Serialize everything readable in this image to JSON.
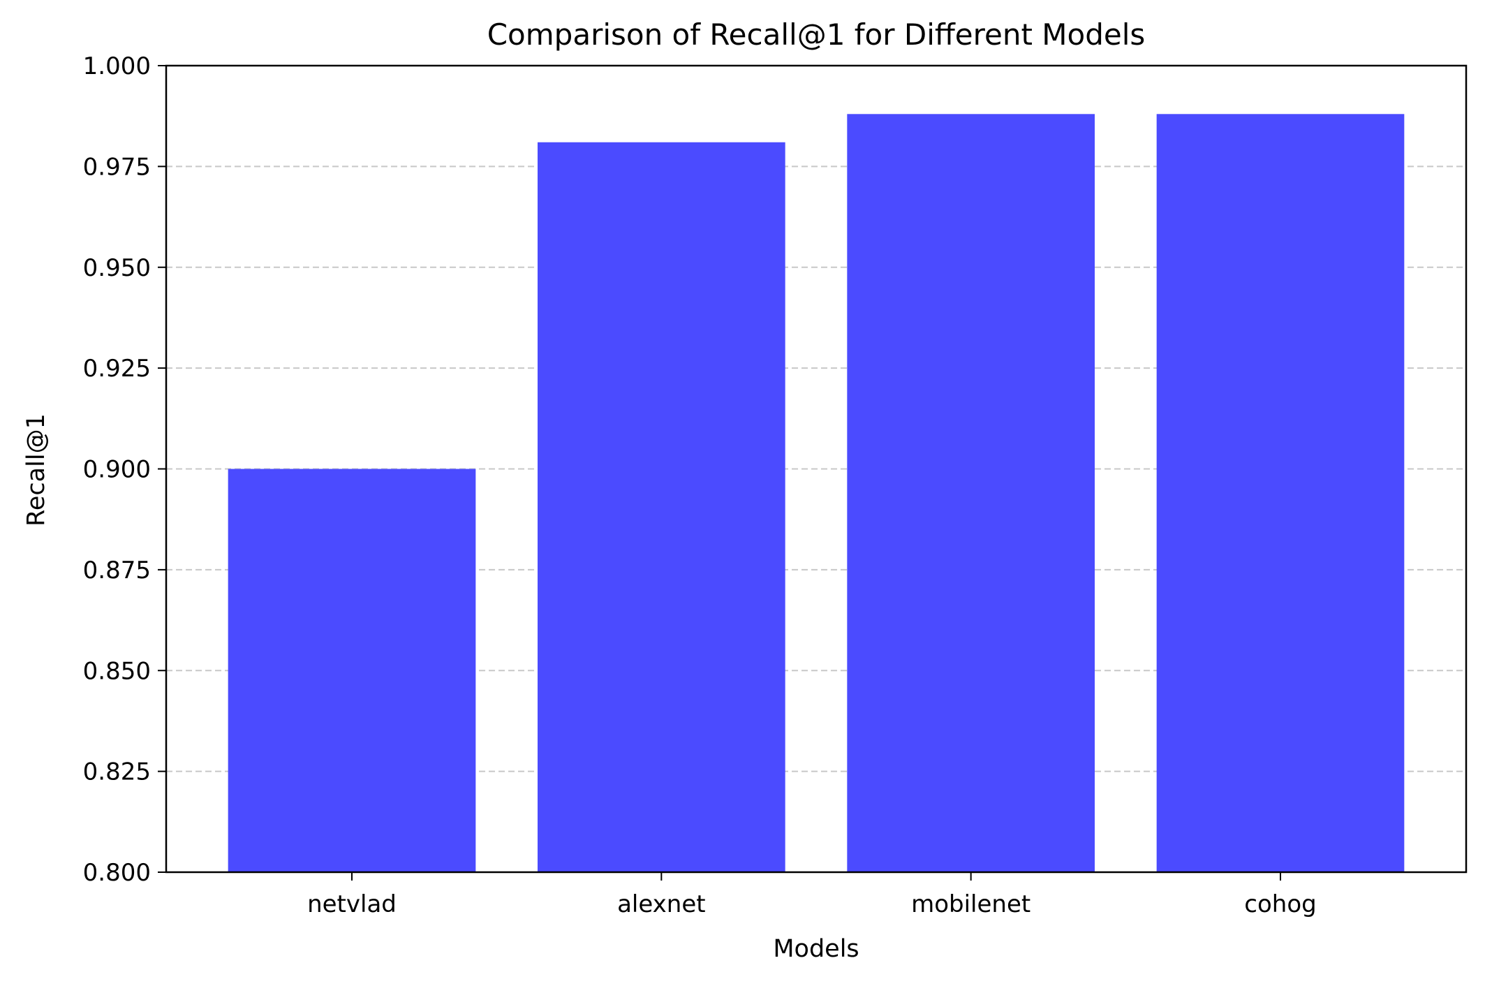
{
  "chart_data": {
    "type": "bar",
    "title": "Comparison of Recall@1 for Different Models",
    "xlabel": "Models",
    "ylabel": "Recall@1",
    "categories": [
      "netvlad",
      "alexnet",
      "mobilenet",
      "cohog"
    ],
    "values": [
      0.9,
      0.981,
      0.988,
      0.988
    ],
    "ylim": [
      0.8,
      1.0
    ],
    "yticks": [
      "0.800",
      "0.825",
      "0.850",
      "0.875",
      "0.900",
      "0.925",
      "0.950",
      "0.975",
      "1.000"
    ],
    "grid": "y-axis, dashed",
    "legend": "none",
    "colors": {
      "bar": "#4b4bff",
      "grid": "#c8c8c8",
      "axis": "#000000"
    }
  }
}
